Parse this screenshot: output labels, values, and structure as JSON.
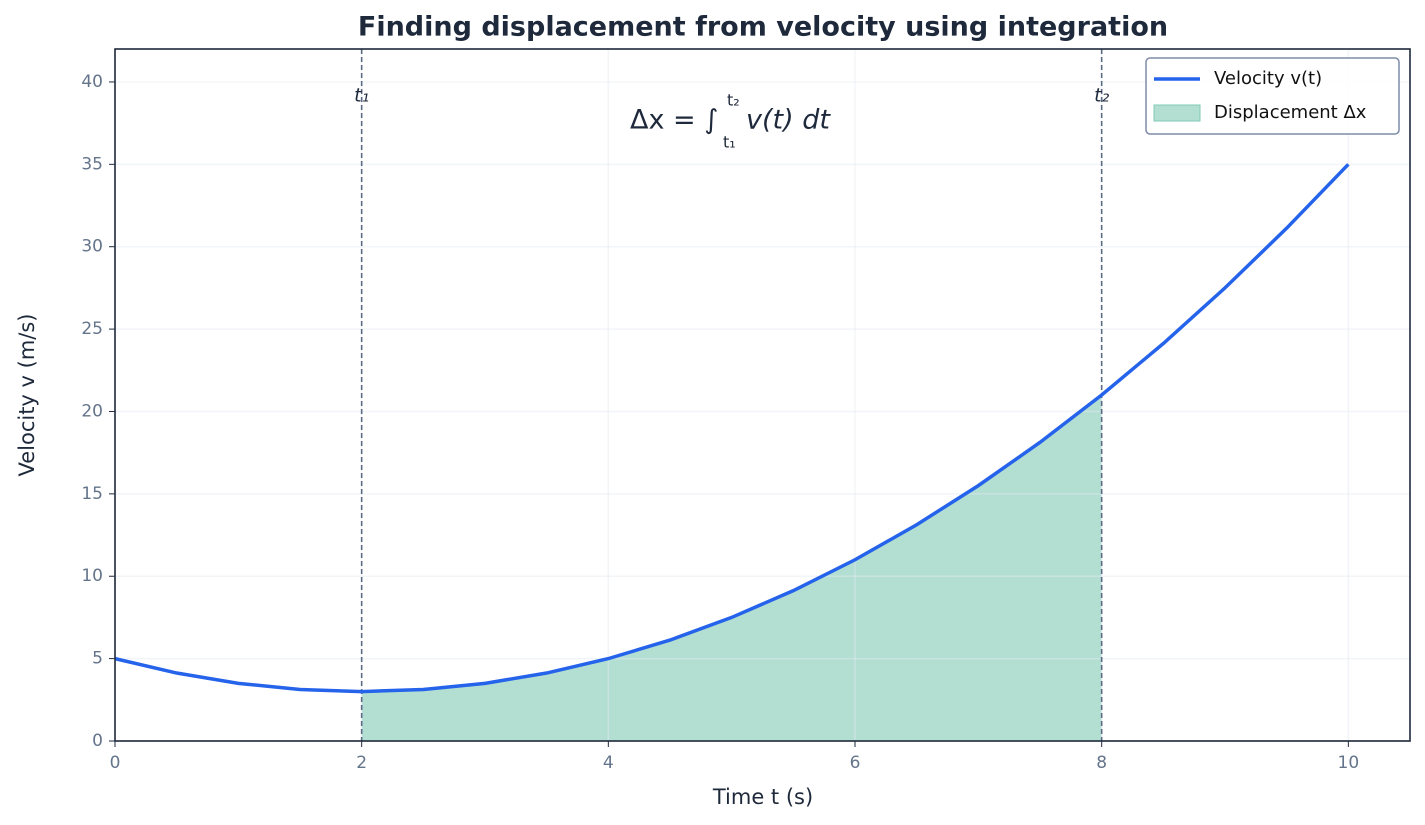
{
  "chart_data": {
    "type": "line",
    "title": "Finding displacement from velocity using integration",
    "x_label": "Time t (s)",
    "y_label": "Velocity v (m/s)",
    "x": [
      0,
      0.5,
      1,
      1.5,
      2,
      2.5,
      3,
      3.5,
      4,
      4.5,
      5,
      5.5,
      6,
      6.5,
      7,
      7.5,
      8,
      8.5,
      9,
      9.5,
      10
    ],
    "series": [
      {
        "name": "Velocity v(t)",
        "color": "#2563eb",
        "values": [
          5,
          4.125,
          3.5,
          3.125,
          3,
          3.125,
          3.5,
          4.125,
          5,
          6.125,
          7.5,
          9.125,
          11,
          13.125,
          15.5,
          18.125,
          21,
          24.125,
          27.5,
          31.125,
          35
        ]
      }
    ],
    "area": {
      "name": "Displacement Δx",
      "color": "#b3dfd3",
      "edge": "#7fc9b4"
    },
    "vlines": [
      {
        "x": 2,
        "label": "t₁"
      },
      {
        "x": 8,
        "label": "t₂"
      }
    ],
    "equation": {
      "text": "Δx = ∫",
      "upper": "t₂",
      "lower": "t₁",
      "integrand": "v(t) dt"
    },
    "xlim": [
      0,
      10.5
    ],
    "ylim": [
      0,
      42
    ],
    "xticks": [
      0,
      2,
      4,
      6,
      8,
      10
    ],
    "yticks": [
      0,
      5,
      10,
      15,
      20,
      25,
      30,
      35,
      40
    ],
    "grid": true,
    "legend": "upper right"
  }
}
